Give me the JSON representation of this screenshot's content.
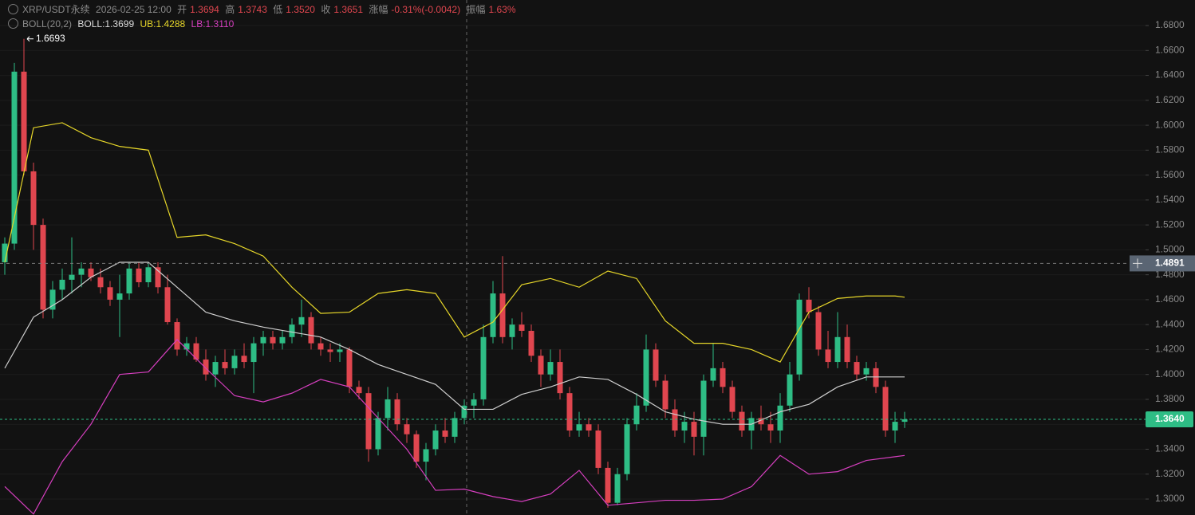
{
  "header": {
    "symbol": "XRP/USDT永续",
    "time": "2026-02-25 12:00",
    "open_label": "开",
    "open": "1.3694",
    "high_label": "高",
    "high": "1.3743",
    "low_label": "低",
    "low": "1.3520",
    "close_label": "收",
    "close": "1.3651",
    "change_label": "涨幅",
    "change": "-0.31%(-0.0042)",
    "amp_label": "振幅",
    "amp": "1.63%",
    "indicator": "BOLL(20,2)",
    "mb": "BOLL:1.3699",
    "ub": "UB:1.4288",
    "lb": "LB:1.3110"
  },
  "chart_data": {
    "type": "candlestick",
    "up_color": "#2ebd85",
    "down_color": "#e0464f",
    "grid": true,
    "ylim": [
      1.2872,
      1.7005
    ],
    "yticks": [
      {
        "value": 1.3,
        "label": "1.3000"
      },
      {
        "value": 1.32,
        "label": "1.3200"
      },
      {
        "value": 1.34,
        "label": "1.3400"
      },
      {
        "value": 1.36,
        "label": "1.3600"
      },
      {
        "value": 1.38,
        "label": "1.3800"
      },
      {
        "value": 1.4,
        "label": "1.4000"
      },
      {
        "value": 1.42,
        "label": "1.4200"
      },
      {
        "value": 1.44,
        "label": "1.4400"
      },
      {
        "value": 1.46,
        "label": "1.4600"
      },
      {
        "value": 1.48,
        "label": "1.4800"
      },
      {
        "value": 1.5,
        "label": "1.5000"
      },
      {
        "value": 1.52,
        "label": "1.5200"
      },
      {
        "value": 1.54,
        "label": "1.5400"
      },
      {
        "value": 1.56,
        "label": "1.5600"
      },
      {
        "value": 1.58,
        "label": "1.5800"
      },
      {
        "value": 1.6,
        "label": "1.6000"
      },
      {
        "value": 1.62,
        "label": "1.6200"
      },
      {
        "value": 1.64,
        "label": "1.6400"
      },
      {
        "value": 1.66,
        "label": "1.6600"
      },
      {
        "value": 1.68,
        "label": "1.6800"
      }
    ],
    "max_price": 1.6693,
    "crosshair_price": 1.4891,
    "last_price": {
      "value": 1.364,
      "label": "1.3640"
    },
    "candles": [
      [
        1.49,
        1.51,
        1.48,
        1.505
      ],
      [
        1.505,
        1.65,
        1.5,
        1.643
      ],
      [
        1.643,
        1.6693,
        1.56,
        1.563
      ],
      [
        1.563,
        1.57,
        1.5,
        1.52
      ],
      [
        1.52,
        1.525,
        1.445,
        1.452
      ],
      [
        1.452,
        1.475,
        1.445,
        1.468
      ],
      [
        1.468,
        1.485,
        1.46,
        1.476
      ],
      [
        1.476,
        1.51,
        1.465,
        1.48
      ],
      [
        1.48,
        1.49,
        1.47,
        1.485
      ],
      [
        1.485,
        1.49,
        1.475,
        1.478
      ],
      [
        1.478,
        1.485,
        1.465,
        1.47
      ],
      [
        1.47,
        1.475,
        1.455,
        1.46
      ],
      [
        1.46,
        1.48,
        1.43,
        1.465
      ],
      [
        1.465,
        1.49,
        1.46,
        1.485
      ],
      [
        1.485,
        1.49,
        1.47,
        1.474
      ],
      [
        1.474,
        1.49,
        1.47,
        1.486
      ],
      [
        1.486,
        1.49,
        1.465,
        1.47
      ],
      [
        1.47,
        1.48,
        1.44,
        1.442
      ],
      [
        1.442,
        1.445,
        1.415,
        1.42
      ],
      [
        1.42,
        1.43,
        1.415,
        1.425
      ],
      [
        1.425,
        1.43,
        1.41,
        1.412
      ],
      [
        1.412,
        1.42,
        1.395,
        1.4
      ],
      [
        1.4,
        1.415,
        1.39,
        1.41
      ],
      [
        1.41,
        1.42,
        1.4,
        1.405
      ],
      [
        1.405,
        1.42,
        1.4,
        1.415
      ],
      [
        1.415,
        1.425,
        1.405,
        1.41
      ],
      [
        1.41,
        1.43,
        1.385,
        1.425
      ],
      [
        1.425,
        1.435,
        1.415,
        1.43
      ],
      [
        1.43,
        1.435,
        1.42,
        1.425
      ],
      [
        1.425,
        1.435,
        1.42,
        1.43
      ],
      [
        1.43,
        1.445,
        1.425,
        1.44
      ],
      [
        1.44,
        1.46,
        1.43,
        1.446
      ],
      [
        1.446,
        1.45,
        1.42,
        1.425
      ],
      [
        1.425,
        1.43,
        1.415,
        1.42
      ],
      [
        1.42,
        1.425,
        1.41,
        1.418
      ],
      [
        1.418,
        1.425,
        1.41,
        1.42
      ],
      [
        1.42,
        1.422,
        1.385,
        1.39
      ],
      [
        1.39,
        1.395,
        1.38,
        1.385
      ],
      [
        1.385,
        1.39,
        1.33,
        1.34
      ],
      [
        1.34,
        1.37,
        1.335,
        1.365
      ],
      [
        1.365,
        1.39,
        1.355,
        1.38
      ],
      [
        1.38,
        1.385,
        1.355,
        1.36
      ],
      [
        1.36,
        1.365,
        1.345,
        1.352
      ],
      [
        1.352,
        1.355,
        1.325,
        1.33
      ],
      [
        1.33,
        1.345,
        1.315,
        1.34
      ],
      [
        1.34,
        1.36,
        1.335,
        1.355
      ],
      [
        1.355,
        1.365,
        1.345,
        1.35
      ],
      [
        1.35,
        1.37,
        1.345,
        1.365
      ],
      [
        1.365,
        1.38,
        1.36,
        1.375
      ],
      [
        1.375,
        1.385,
        1.365,
        1.38
      ],
      [
        1.38,
        1.44,
        1.375,
        1.43
      ],
      [
        1.43,
        1.475,
        1.425,
        1.465
      ],
      [
        1.465,
        1.495,
        1.425,
        1.43
      ],
      [
        1.43,
        1.445,
        1.42,
        1.44
      ],
      [
        1.44,
        1.45,
        1.43,
        1.435
      ],
      [
        1.435,
        1.44,
        1.41,
        1.415
      ],
      [
        1.415,
        1.42,
        1.39,
        1.4
      ],
      [
        1.4,
        1.42,
        1.395,
        1.41
      ],
      [
        1.41,
        1.42,
        1.38,
        1.385
      ],
      [
        1.385,
        1.39,
        1.35,
        1.355
      ],
      [
        1.355,
        1.37,
        1.35,
        1.36
      ],
      [
        1.36,
        1.365,
        1.35,
        1.355
      ],
      [
        1.355,
        1.36,
        1.32,
        1.325
      ],
      [
        1.325,
        1.33,
        1.293,
        1.297
      ],
      [
        1.297,
        1.325,
        1.295,
        1.32
      ],
      [
        1.32,
        1.365,
        1.315,
        1.36
      ],
      [
        1.36,
        1.385,
        1.355,
        1.375
      ],
      [
        1.375,
        1.432,
        1.37,
        1.42
      ],
      [
        1.42,
        1.425,
        1.39,
        1.395
      ],
      [
        1.395,
        1.4,
        1.365,
        1.372
      ],
      [
        1.372,
        1.38,
        1.35,
        1.355
      ],
      [
        1.355,
        1.37,
        1.345,
        1.362
      ],
      [
        1.362,
        1.37,
        1.335,
        1.35
      ],
      [
        1.35,
        1.4,
        1.335,
        1.395
      ],
      [
        1.395,
        1.425,
        1.39,
        1.405
      ],
      [
        1.405,
        1.41,
        1.385,
        1.39
      ],
      [
        1.39,
        1.395,
        1.365,
        1.37
      ],
      [
        1.37,
        1.375,
        1.35,
        1.355
      ],
      [
        1.355,
        1.37,
        1.34,
        1.365
      ],
      [
        1.365,
        1.375,
        1.355,
        1.36
      ],
      [
        1.36,
        1.37,
        1.345,
        1.355
      ],
      [
        1.355,
        1.385,
        1.345,
        1.375
      ],
      [
        1.375,
        1.41,
        1.37,
        1.4
      ],
      [
        1.4,
        1.465,
        1.395,
        1.46
      ],
      [
        1.46,
        1.47,
        1.445,
        1.45
      ],
      [
        1.45,
        1.455,
        1.415,
        1.42
      ],
      [
        1.42,
        1.435,
        1.405,
        1.41
      ],
      [
        1.41,
        1.45,
        1.405,
        1.43
      ],
      [
        1.43,
        1.44,
        1.405,
        1.41
      ],
      [
        1.41,
        1.415,
        1.395,
        1.4
      ],
      [
        1.4,
        1.41,
        1.395,
        1.405
      ],
      [
        1.405,
        1.41,
        1.385,
        1.39
      ],
      [
        1.39,
        1.395,
        1.35,
        1.355
      ],
      [
        1.355,
        1.37,
        1.345,
        1.362
      ],
      [
        1.362,
        1.37,
        1.357,
        1.364
      ]
    ],
    "bands": {
      "index": [
        0,
        3,
        6,
        9,
        12,
        15,
        18,
        21,
        24,
        27,
        30,
        33,
        36,
        39,
        42,
        45,
        48,
        51,
        54,
        57,
        60,
        63,
        66,
        69,
        72,
        75,
        78,
        81,
        84,
        87,
        90,
        93,
        94
      ],
      "upper": {
        "color": "#e6d629",
        "values": [
          1.49,
          1.598,
          1.602,
          1.59,
          1.583,
          1.58,
          1.51,
          1.512,
          1.505,
          1.495,
          1.47,
          1.449,
          1.45,
          1.465,
          1.468,
          1.465,
          1.43,
          1.442,
          1.472,
          1.477,
          1.47,
          1.483,
          1.477,
          1.443,
          1.425,
          1.425,
          1.42,
          1.41,
          1.45,
          1.461,
          1.463,
          1.463,
          1.462
        ]
      },
      "middle": {
        "color": "#cfcfcf",
        "values": [
          1.405,
          1.446,
          1.46,
          1.478,
          1.49,
          1.49,
          1.47,
          1.45,
          1.443,
          1.438,
          1.434,
          1.43,
          1.42,
          1.408,
          1.4,
          1.392,
          1.372,
          1.372,
          1.384,
          1.39,
          1.398,
          1.396,
          1.384,
          1.37,
          1.364,
          1.36,
          1.36,
          1.37,
          1.376,
          1.39,
          1.398,
          1.398,
          1.398
        ]
      },
      "lower": {
        "color": "#d63fbf",
        "values": [
          1.31,
          1.288,
          1.33,
          1.36,
          1.4,
          1.402,
          1.428,
          1.405,
          1.383,
          1.378,
          1.385,
          1.396,
          1.39,
          1.365,
          1.34,
          1.307,
          1.308,
          1.302,
          1.298,
          1.304,
          1.323,
          1.295,
          1.297,
          1.299,
          1.299,
          1.3,
          1.31,
          1.335,
          1.32,
          1.322,
          1.331,
          1.334,
          1.335
        ]
      }
    }
  }
}
